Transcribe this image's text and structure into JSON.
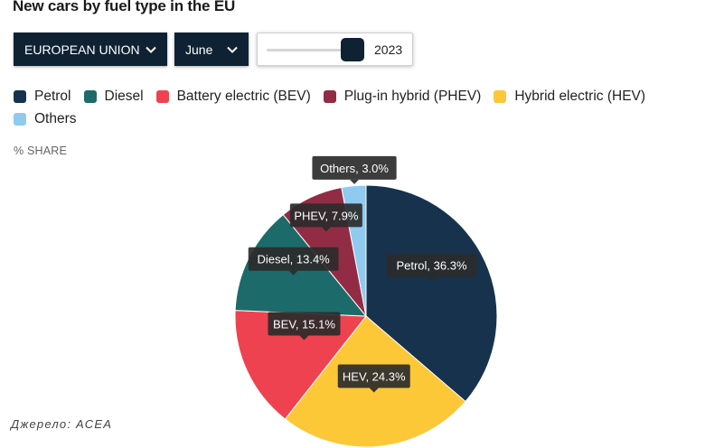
{
  "title": "New cars by fuel type in the EU",
  "controls": {
    "region": "EUROPEAN UNION",
    "month": "June",
    "year": "2023",
    "year_slider_position": 0.91
  },
  "unit_label": "% SHARE",
  "source": "Джерело: ACEA",
  "legend": [
    {
      "label": "Petrol",
      "color": "#17324d"
    },
    {
      "label": "Diesel",
      "color": "#1d6a6a"
    },
    {
      "label": "Battery electric (BEV)",
      "color": "#ee4250"
    },
    {
      "label": "Plug-in hybrid (PHEV)",
      "color": "#922c44"
    },
    {
      "label": "Hybrid electric (HEV)",
      "color": "#fcc838"
    },
    {
      "label": "Others",
      "color": "#90caef"
    }
  ],
  "chart_data": {
    "type": "pie",
    "title": "New cars by fuel type in the EU",
    "slices": [
      {
        "name": "Petrol",
        "value": 36.3,
        "color": "#17324d",
        "label": "Petrol, 36.3%"
      },
      {
        "name": "HEV",
        "value": 24.3,
        "color": "#fcc838",
        "label": "HEV, 24.3%"
      },
      {
        "name": "BEV",
        "value": 15.1,
        "color": "#ee4250",
        "label": "BEV, 15.1%"
      },
      {
        "name": "Diesel",
        "value": 13.4,
        "color": "#1d6a6a",
        "label": "Diesel, 13.4%"
      },
      {
        "name": "PHEV",
        "value": 7.9,
        "color": "#922c44",
        "label": "PHEV, 7.9%"
      },
      {
        "name": "Others",
        "value": 3.0,
        "color": "#90caef",
        "label": "Others, 3.0%"
      }
    ]
  }
}
